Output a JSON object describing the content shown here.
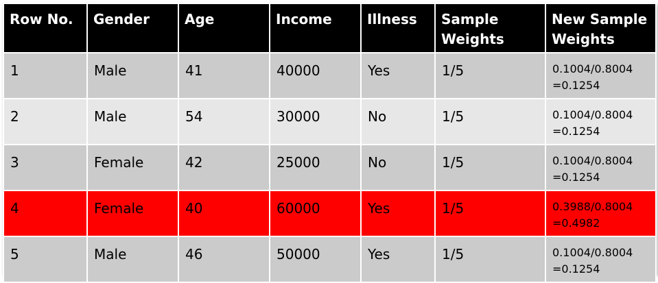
{
  "table": {
    "headers": [
      "Row No.",
      "Gender",
      "Age",
      "Income",
      "Illness",
      "Sample Weights",
      "New Sample Weights"
    ],
    "rows": [
      {
        "row_no": "1",
        "gender": "Male",
        "age": "41",
        "income": "40000",
        "illness": "Yes",
        "sample_weight": "1/5",
        "new_weight_line1": "0.1004/0.8004",
        "new_weight_line2": "=0.1254"
      },
      {
        "row_no": "2",
        "gender": "Male",
        "age": "54",
        "income": "30000",
        "illness": "No",
        "sample_weight": "1/5",
        "new_weight_line1": "0.1004/0.8004",
        "new_weight_line2": "=0.1254"
      },
      {
        "row_no": "3",
        "gender": "Female",
        "age": "42",
        "income": "25000",
        "illness": "No",
        "sample_weight": "1/5",
        "new_weight_line1": "0.1004/0.8004",
        "new_weight_line2": "=0.1254"
      },
      {
        "row_no": "4",
        "gender": "Female",
        "age": "40",
        "income": "60000",
        "illness": "Yes",
        "sample_weight": "1/5",
        "new_weight_line1": "0.3988/0.8004",
        "new_weight_line2": "=0.4982"
      },
      {
        "row_no": "5",
        "gender": "Male",
        "age": "46",
        "income": "50000",
        "illness": "Yes",
        "sample_weight": "1/5",
        "new_weight_line1": "0.1004/0.8004",
        "new_weight_line2": "=0.1254"
      }
    ]
  },
  "colors": {
    "header_bg": "#000000",
    "header_text": "#ffffff",
    "row_odd": "#cbcbcb",
    "row_even": "#e7e7e7",
    "highlight_row": "#ff0000"
  }
}
